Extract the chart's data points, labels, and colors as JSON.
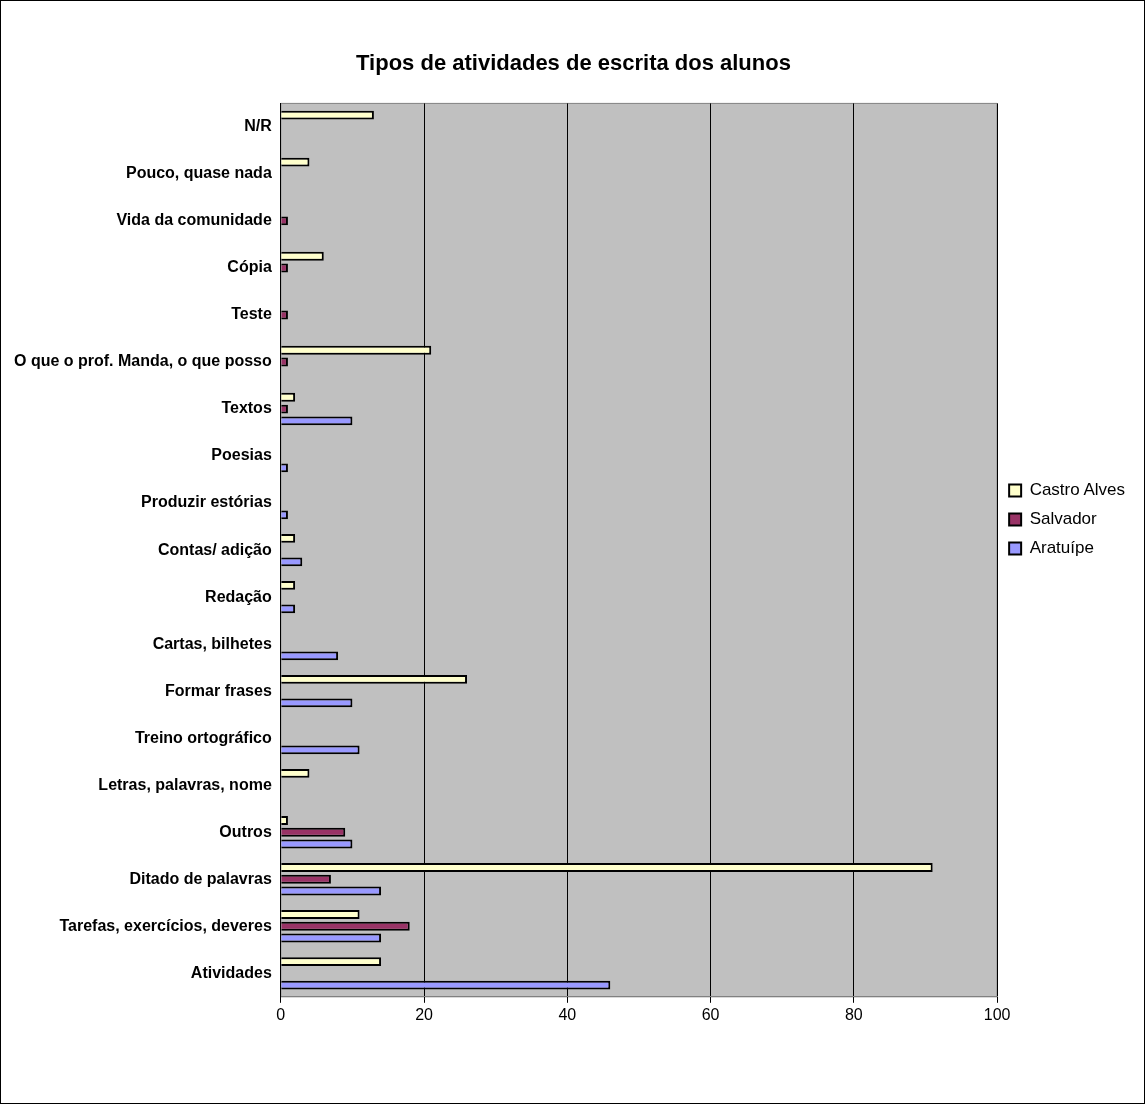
{
  "chart_data": {
    "type": "bar",
    "orientation": "horizontal",
    "title": "Tipos de atividades de escrita dos alunos",
    "categories": [
      "N/R",
      "Pouco, quase nada",
      "Vida da comunidade",
      "Cópia",
      "Teste",
      "O que o prof. Manda, o que posso",
      "Textos",
      "Poesias",
      "Produzir estórias",
      "Contas/ adição",
      "Redação",
      "Cartas, bilhetes",
      "Formar frases",
      "Treino ortográfico",
      "Letras, palavras, nome",
      "Outros",
      "Ditado de palavras",
      "Tarefas, exercícios, deveres",
      "Atividades"
    ],
    "series": [
      {
        "name": "Castro Alves",
        "color": "#ffffcc",
        "values": [
          13,
          4,
          null,
          6,
          null,
          21,
          2,
          null,
          null,
          2,
          2,
          null,
          26,
          null,
          4,
          1,
          91,
          11,
          14
        ]
      },
      {
        "name": "Salvador",
        "color": "#993366",
        "values": [
          null,
          null,
          1,
          1,
          1,
          1,
          1,
          null,
          null,
          null,
          null,
          null,
          null,
          null,
          null,
          9,
          7,
          18,
          null
        ]
      },
      {
        "name": "Aratuípe",
        "color": "#9999ff",
        "values": [
          null,
          null,
          null,
          null,
          null,
          null,
          10,
          1,
          1,
          3,
          2,
          8,
          10,
          11,
          null,
          10,
          14,
          14,
          46
        ]
      }
    ],
    "xlim": [
      0,
      100
    ],
    "xticks": [
      0,
      20,
      40,
      60,
      80,
      100
    ],
    "grid": "x",
    "legend": "right"
  }
}
